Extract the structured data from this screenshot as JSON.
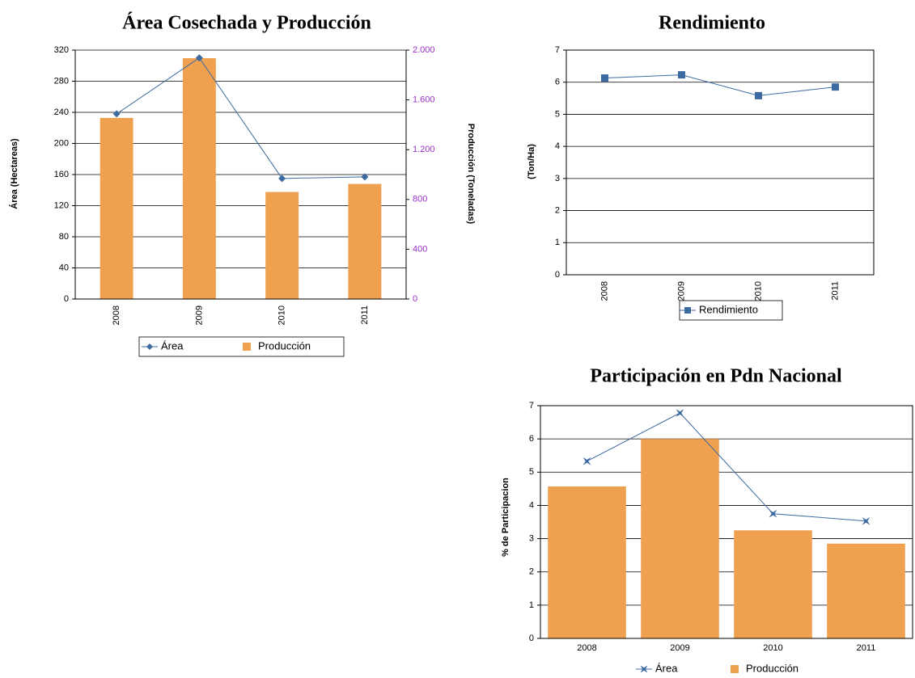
{
  "chart_data": [
    {
      "type": "combo",
      "title": "Área Cosechada y Producción",
      "categories": [
        "2008",
        "2009",
        "2010",
        "2011"
      ],
      "y_label": "Área (Hectareas)",
      "y2_label": "Producción (Toneladas)",
      "ylim": [
        0,
        320
      ],
      "yticks": [
        0,
        40,
        80,
        120,
        160,
        200,
        240,
        280,
        320
      ],
      "y2lim": [
        0,
        2000
      ],
      "y2ticks": [
        0,
        400,
        800,
        {
          "value": 1200,
          "label": "1.200"
        },
        {
          "value": 1600,
          "label": "1.600"
        },
        {
          "value": 2000,
          "label": "2.000"
        }
      ],
      "y2_color": "#9b30c8",
      "grid": true,
      "series": [
        {
          "name": "Área",
          "type": "line",
          "marker": "diamond",
          "color": "#3d6aa0",
          "values": [
            238,
            310,
            155,
            157
          ]
        },
        {
          "name": "Producción",
          "type": "bar",
          "axis": "y2",
          "color": "#f0a150",
          "values": [
            1455,
            1935,
            860,
            925
          ]
        }
      ]
    },
    {
      "type": "line",
      "title": "Rendimiento",
      "categories": [
        "2008",
        "2009",
        "2010",
        "2011"
      ],
      "y_label": "(Ton/Ha)",
      "ylim": [
        0,
        7
      ],
      "yticks": [
        0,
        1,
        2,
        3,
        4,
        5,
        6,
        7
      ],
      "grid": true,
      "series": [
        {
          "name": "Rendimiento",
          "type": "line",
          "marker": "square",
          "color": "#3d6aa0",
          "values": [
            6.13,
            6.23,
            5.58,
            5.85
          ]
        }
      ]
    },
    {
      "type": "combo",
      "title": "Participación en Pdn Nacional",
      "categories": [
        "2008",
        "2009",
        "2010",
        "2011"
      ],
      "y_label": "% de Participacion",
      "ylim": [
        0,
        7
      ],
      "yticks": [
        0,
        1,
        2,
        3,
        4,
        5,
        6,
        7
      ],
      "grid": true,
      "series": [
        {
          "name": "Área",
          "type": "line",
          "marker": "star",
          "color": "#3d6aa0",
          "values": [
            5.33,
            6.78,
            3.75,
            3.53
          ]
        },
        {
          "name": "Producción",
          "type": "bar",
          "color": "#f0a150",
          "values": [
            4.57,
            6.0,
            3.25,
            2.85
          ]
        }
      ]
    }
  ]
}
